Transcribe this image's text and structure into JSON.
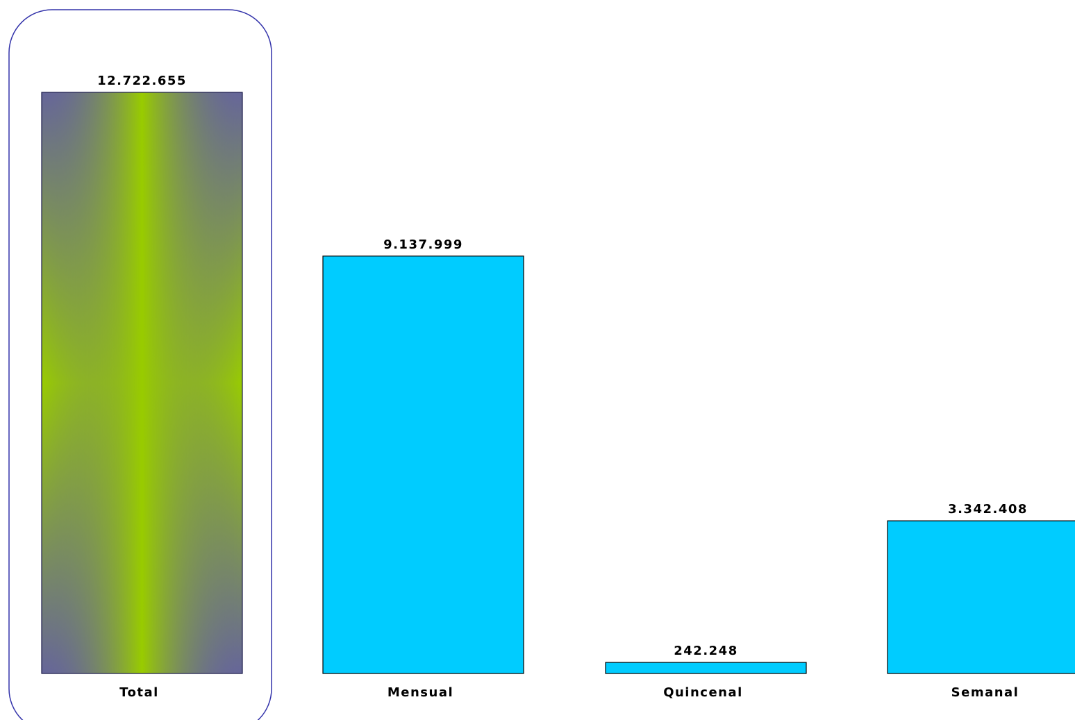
{
  "chart_data": {
    "type": "bar",
    "categories": [
      "Total",
      "Mensual",
      "Quincenal",
      "Semanal"
    ],
    "values": [
      12722655,
      9137999,
      242248,
      3342408
    ],
    "value_labels": [
      "12.722.655",
      "9.137.999",
      "242.248",
      "3.342.408"
    ],
    "title": "",
    "xlabel": "",
    "ylabel": "",
    "ylim": [
      0,
      12722655
    ],
    "grid": false,
    "legend": "none",
    "highlighted_category": "Total"
  },
  "colors": {
    "bar_fill": "#00ccff",
    "highlight_center": "#99cc00",
    "highlight_edge": "#666699",
    "bar_stroke": "#1a1a4a",
    "frame_stroke": "#3333aa"
  }
}
